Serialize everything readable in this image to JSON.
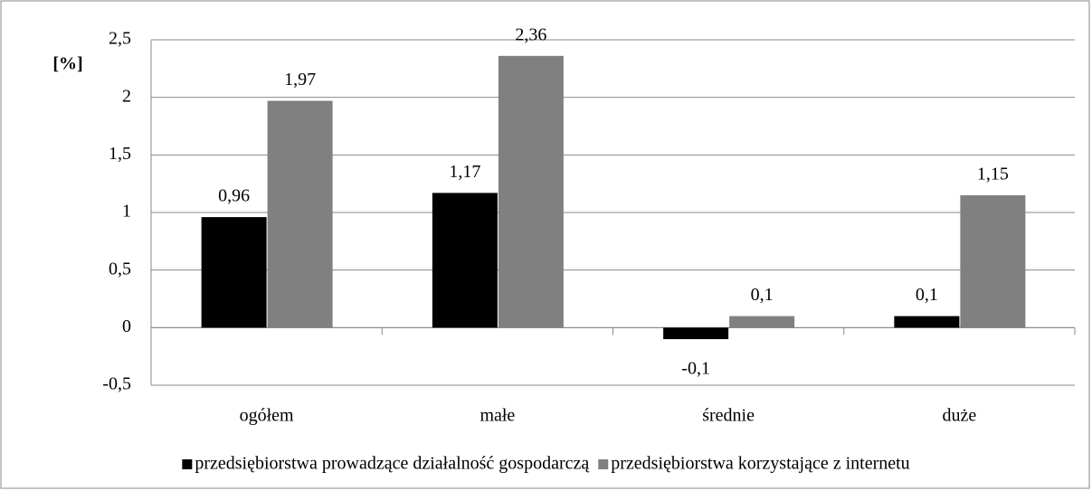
{
  "chart_data": {
    "type": "bar",
    "ylabel": "[%]",
    "categories": [
      "ogółem",
      "małe",
      "średnie",
      "duże"
    ],
    "series": [
      {
        "name": "przedsiębiorstwa prowadzące działalność gospodarczą",
        "color": "#000000",
        "values": [
          0.96,
          1.17,
          -0.1,
          0.1
        ],
        "value_labels": [
          "0,96",
          "1,17",
          "-0,1",
          "0,1"
        ]
      },
      {
        "name": "przedsiębiorstwa korzystające z internetu",
        "color": "#808080",
        "values": [
          1.97,
          2.36,
          0.1,
          1.15
        ],
        "value_labels": [
          "1,97",
          "2,36",
          "0,1",
          "1,15"
        ]
      }
    ],
    "ylim": [
      -0.5,
      2.5
    ],
    "yticks": [
      {
        "value": -0.5,
        "label": "-0,5"
      },
      0,
      {
        "value": 0.5,
        "label": "0,5"
      },
      1,
      {
        "value": 1.5,
        "label": "1,5"
      },
      2,
      {
        "value": 2.5,
        "label": "2,5"
      }
    ],
    "grid": true,
    "legend": "bottom"
  }
}
